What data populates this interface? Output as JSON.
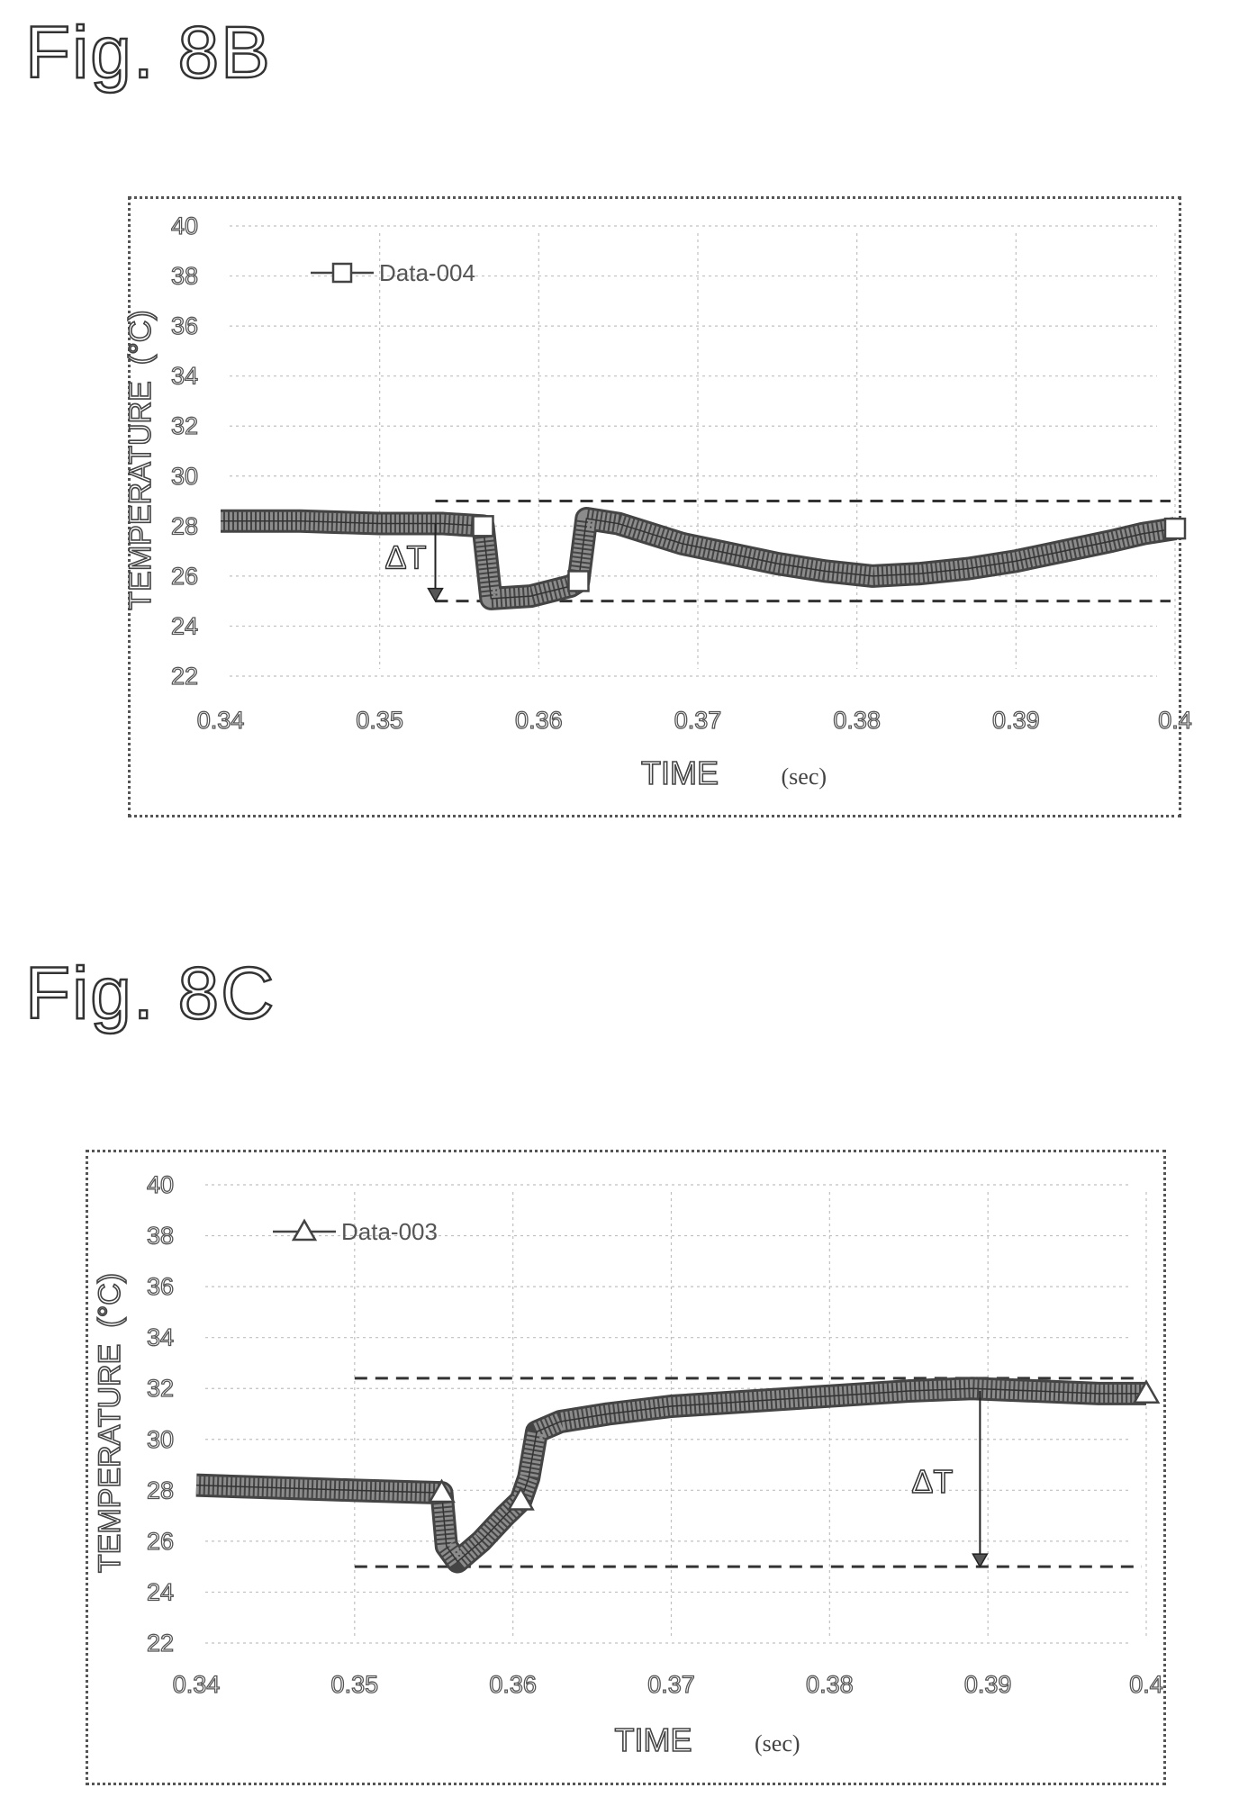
{
  "figures": [
    {
      "label": "Fig. 8B",
      "ylabel": "TEMPERATURE",
      "yunit": "(°C)",
      "xlabel": "TIME",
      "xunit": "(sec)",
      "legend": "Data-004",
      "marker": "square",
      "annotation": "ΔT"
    },
    {
      "label": "Fig. 8C",
      "ylabel": "TEMPERATURE",
      "yunit": "(°C)",
      "xlabel": "TIME",
      "xunit": "(sec)",
      "legend": "Data-003",
      "marker": "triangle",
      "annotation": "ΔT"
    }
  ],
  "colors": {
    "band": "#8c8c8c",
    "band_edge": "#444444",
    "text": "#444444",
    "grid": "#c0c0c0",
    "dashed": "#333333"
  },
  "chart_data": [
    {
      "type": "line",
      "title": "",
      "xlabel": "TIME (sec)",
      "ylabel": "TEMPERATURE (°C)",
      "xlim": [
        0.34,
        0.4
      ],
      "ylim": [
        22,
        40
      ],
      "xticks": [
        "0.34",
        "0.35",
        "0.36",
        "0.37",
        "0.38",
        "0.39",
        "0.4"
      ],
      "yticks": [
        "22",
        "24",
        "26",
        "28",
        "30",
        "32",
        "34",
        "36",
        "38",
        "40"
      ],
      "grid": true,
      "legend_position": "top-left",
      "series": [
        {
          "name": "Data-004",
          "marker": "square",
          "x": [
            0.34,
            0.345,
            0.35,
            0.354,
            0.3565,
            0.357,
            0.3595,
            0.362,
            0.3625,
            0.363,
            0.365,
            0.367,
            0.369,
            0.372,
            0.375,
            0.378,
            0.381,
            0.384,
            0.387,
            0.39,
            0.393,
            0.396,
            0.398,
            0.4
          ],
          "y": [
            28.2,
            28.2,
            28.1,
            28.1,
            28.0,
            25.1,
            25.2,
            25.6,
            25.8,
            28.3,
            28.1,
            27.7,
            27.3,
            26.9,
            26.5,
            26.2,
            26.0,
            26.1,
            26.3,
            26.6,
            27.0,
            27.4,
            27.7,
            27.9
          ]
        }
      ],
      "dashed_lines": [
        29.0,
        25.0
      ],
      "markers_x": [
        0.3565,
        0.3625,
        0.4
      ],
      "delta_T_arrow": {
        "x": 0.3535,
        "from": 28.1,
        "to": 25.0
      }
    },
    {
      "type": "line",
      "title": "",
      "xlabel": "TIME (sec)",
      "ylabel": "TEMPERATURE (°C)",
      "xlim": [
        0.34,
        0.4
      ],
      "ylim": [
        22,
        40
      ],
      "xticks": [
        "0.34",
        "0.35",
        "0.36",
        "0.37",
        "0.38",
        "0.39",
        "0.4"
      ],
      "yticks": [
        "22",
        "24",
        "26",
        "28",
        "30",
        "32",
        "34",
        "36",
        "38",
        "40"
      ],
      "grid": true,
      "legend_position": "top-left",
      "series": [
        {
          "name": "Data-003",
          "marker": "triangle",
          "x": [
            0.34,
            0.345,
            0.35,
            0.3555,
            0.3558,
            0.3565,
            0.358,
            0.3595,
            0.3605,
            0.361,
            0.3615,
            0.363,
            0.366,
            0.37,
            0.375,
            0.38,
            0.385,
            0.389,
            0.393,
            0.397,
            0.4
          ],
          "y": [
            28.2,
            28.1,
            28.0,
            27.9,
            25.8,
            25.2,
            26.0,
            27.0,
            27.6,
            28.5,
            30.3,
            30.7,
            31.0,
            31.3,
            31.5,
            31.7,
            31.9,
            32.0,
            31.9,
            31.8,
            31.8
          ]
        }
      ],
      "dashed_lines": [
        32.4,
        25.0
      ],
      "markers_x": [
        0.3555,
        0.3605,
        0.4
      ],
      "delta_T_arrow": {
        "x": 0.3895,
        "from": 31.9,
        "to": 25.0
      }
    }
  ]
}
